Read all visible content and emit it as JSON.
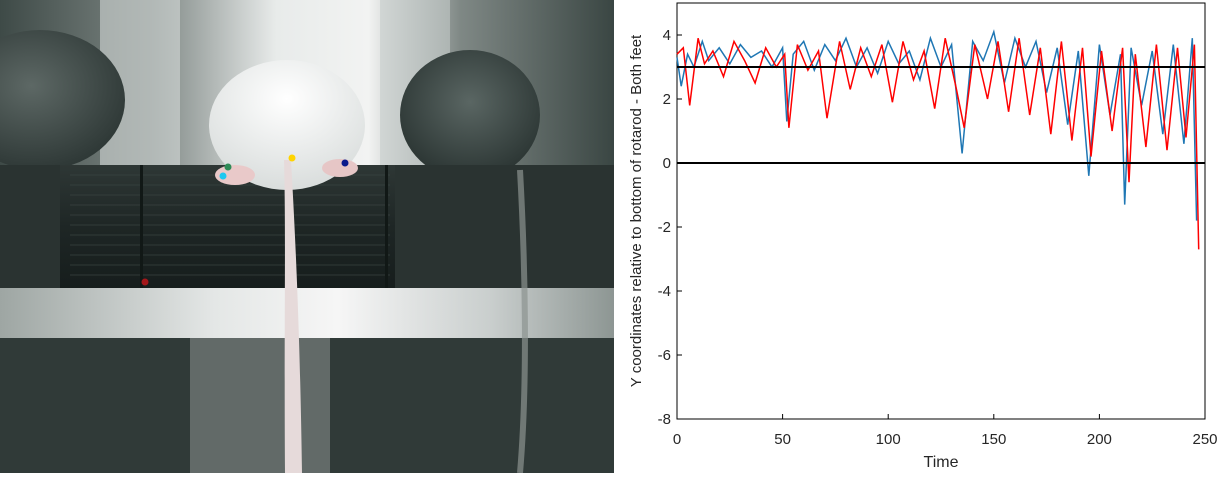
{
  "video": {
    "markers": [
      {
        "name": "marker-left-hindpaw-top",
        "color": "#2e8b57"
      },
      {
        "name": "marker-left-hindpaw",
        "color": "#1ec8f0"
      },
      {
        "name": "marker-tail-base",
        "color": "#ffd400"
      },
      {
        "name": "marker-right-hindpaw",
        "color": "#0a1a8c"
      },
      {
        "name": "marker-rotarod-bottom",
        "color": "#a3171a"
      }
    ]
  },
  "chart_data": {
    "type": "line",
    "xlabel": "Time",
    "ylabel": "Y coordinates relative to bottom of rotarod - Both feet",
    "xlim": [
      0,
      250
    ],
    "ylim": [
      -8,
      5
    ],
    "xticks": [
      "0",
      "50",
      "100",
      "150",
      "200",
      "250"
    ],
    "yticks": [
      "4",
      "2",
      "0",
      "-2",
      "-4",
      "-6",
      "-8"
    ],
    "grid": false,
    "legend": "none",
    "series": [
      {
        "color": "#1f77b4",
        "x": [
          0,
          2,
          5,
          8,
          12,
          15,
          20,
          25,
          30,
          35,
          40,
          45,
          50,
          52,
          55,
          60,
          65,
          70,
          75,
          80,
          85,
          90,
          95,
          100,
          105,
          110,
          115,
          120,
          125,
          130,
          135,
          140,
          145,
          150,
          155,
          160,
          165,
          170,
          175,
          180,
          185,
          190,
          195,
          200,
          205,
          210,
          212,
          215,
          220,
          225,
          230,
          235,
          240,
          244,
          246
        ],
        "values": [
          3.3,
          2.4,
          3.4,
          3.0,
          3.8,
          3.2,
          3.6,
          3.1,
          3.7,
          3.3,
          3.5,
          3.0,
          3.6,
          1.3,
          3.4,
          3.8,
          2.9,
          3.7,
          3.2,
          3.9,
          3.0,
          3.6,
          2.8,
          3.8,
          3.1,
          3.5,
          2.6,
          3.9,
          3.0,
          3.7,
          0.3,
          3.8,
          3.2,
          4.1,
          2.5,
          3.9,
          3.0,
          3.8,
          2.2,
          3.6,
          1.2,
          3.5,
          -0.4,
          3.7,
          1.5,
          3.4,
          -1.3,
          3.6,
          1.8,
          3.5,
          0.9,
          3.7,
          0.6,
          3.9,
          -1.8
        ]
      },
      {
        "color": "#ff0000",
        "x": [
          0,
          3,
          6,
          10,
          13,
          17,
          22,
          27,
          32,
          37,
          42,
          47,
          51,
          53,
          57,
          62,
          67,
          71,
          77,
          82,
          87,
          92,
          97,
          102,
          107,
          112,
          117,
          122,
          127,
          132,
          136,
          141,
          147,
          152,
          157,
          162,
          167,
          172,
          177,
          182,
          187,
          192,
          196,
          201,
          206,
          211,
          214,
          217,
          222,
          227,
          232,
          237,
          241,
          245,
          247
        ],
        "values": [
          3.4,
          3.6,
          1.8,
          3.9,
          3.1,
          3.5,
          2.7,
          3.8,
          3.2,
          2.5,
          3.6,
          3.0,
          3.4,
          1.1,
          3.7,
          2.9,
          3.5,
          1.4,
          3.8,
          2.3,
          3.6,
          2.7,
          3.7,
          1.9,
          3.8,
          2.6,
          3.5,
          1.7,
          3.9,
          2.4,
          1.1,
          3.7,
          2.0,
          3.8,
          1.6,
          3.9,
          1.5,
          3.6,
          0.9,
          3.8,
          0.7,
          3.6,
          0.2,
          3.5,
          1.0,
          3.6,
          -0.6,
          3.4,
          0.5,
          3.7,
          0.4,
          3.6,
          0.8,
          3.7,
          -2.7
        ]
      }
    ],
    "reference_lines": [
      {
        "y": 3,
        "color": "#000000"
      },
      {
        "y": 0,
        "color": "#000000"
      }
    ]
  }
}
